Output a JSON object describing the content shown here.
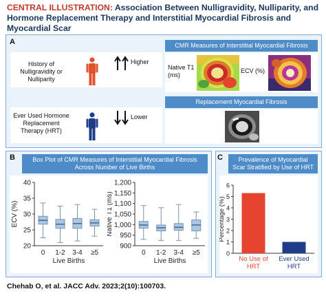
{
  "title": {
    "lead": "CENTRAL ILLUSTRATION:",
    "rest": " Association Between Nulligravidity, Nulliparity, and Hormone Replacement Therapy and Interstitial Myocardial Fibrosis and Myocardial Scar"
  },
  "panel_a": {
    "label": "A",
    "row1_text": "History of Nulligravidity or Nulliparity",
    "row1_trend": "Higher",
    "row2_text": "Ever Used Hormone Replacement Therapy (HRT)",
    "row2_trend": "Lower",
    "cmr_banner": "CMR Measures of Interstitial Myocardial Fibrosis",
    "native_t1_label": "Native T1 (ms)",
    "ecv_label": "ECV (%)",
    "scar_banner": "Replacement Myocardial Fibrosis",
    "colors": {
      "female_figure": "#e0522c",
      "male_figure": "#1f3c88"
    }
  },
  "panel_b": {
    "label": "B",
    "banner": "Box Plot of CMR Measures of Interstitial Myocardial Fibrosis Across Number of Live Births"
  },
  "panel_c": {
    "label": "C",
    "banner": "Prevalence of Myocardial Scar Stratified by Use of HRT"
  },
  "chart_data": [
    {
      "type": "box",
      "ylabel": "ECV (%)",
      "xlabel": "Live Births",
      "categories": [
        "0",
        "1-2",
        "3-4",
        "≥5"
      ],
      "ylim": [
        20,
        40
      ],
      "yticks": [
        20,
        25,
        30,
        35,
        40
      ],
      "boxes": [
        {
          "min": 22.5,
          "q1": 26.8,
          "median": 28.0,
          "q3": 29.3,
          "max": 33.5
        },
        {
          "min": 21.0,
          "q1": 25.5,
          "median": 26.8,
          "q3": 28.3,
          "max": 32.5
        },
        {
          "min": 21.5,
          "q1": 25.5,
          "median": 27.0,
          "q3": 28.6,
          "max": 33.0
        },
        {
          "min": 23.0,
          "q1": 26.2,
          "median": 27.2,
          "q3": 28.2,
          "max": 31.5
        }
      ],
      "box_color": "#a9c6e3"
    },
    {
      "type": "box",
      "ylabel": "Native T1 (ms)",
      "xlabel": "Live Births",
      "categories": [
        "0",
        "1-2",
        "3-4",
        "≥5"
      ],
      "ylim": [
        900,
        1200
      ],
      "yticks": [
        900,
        950,
        1000,
        1050,
        1100,
        1150,
        1200
      ],
      "ytick_labels": [
        "900",
        "950",
        "1,000",
        "1,050",
        "1,100",
        "1,150",
        "1,200"
      ],
      "boxes": [
        {
          "min": 930,
          "q1": 983,
          "median": 998,
          "q3": 1015,
          "max": 1090
        },
        {
          "min": 925,
          "q1": 970,
          "median": 985,
          "q3": 998,
          "max": 1080
        },
        {
          "min": 925,
          "q1": 973,
          "median": 987,
          "q3": 1005,
          "max": 1095
        },
        {
          "min": 935,
          "q1": 970,
          "median": 998,
          "q3": 1022,
          "max": 1060
        }
      ],
      "box_color": "#a9c6e3"
    },
    {
      "type": "bar",
      "ylabel": "Percentage (%)",
      "categories": [
        "No Use of HRT",
        "Ever Used HRT"
      ],
      "values": [
        5.3,
        1.0
      ],
      "ylim": [
        0,
        6
      ],
      "yticks": [
        0,
        1,
        2,
        3,
        4,
        5,
        6
      ],
      "colors": [
        "#e4452c",
        "#1f3c88"
      ]
    }
  ],
  "citation": "Chehab O, et al. JACC Adv. 2023;2(10):100703."
}
